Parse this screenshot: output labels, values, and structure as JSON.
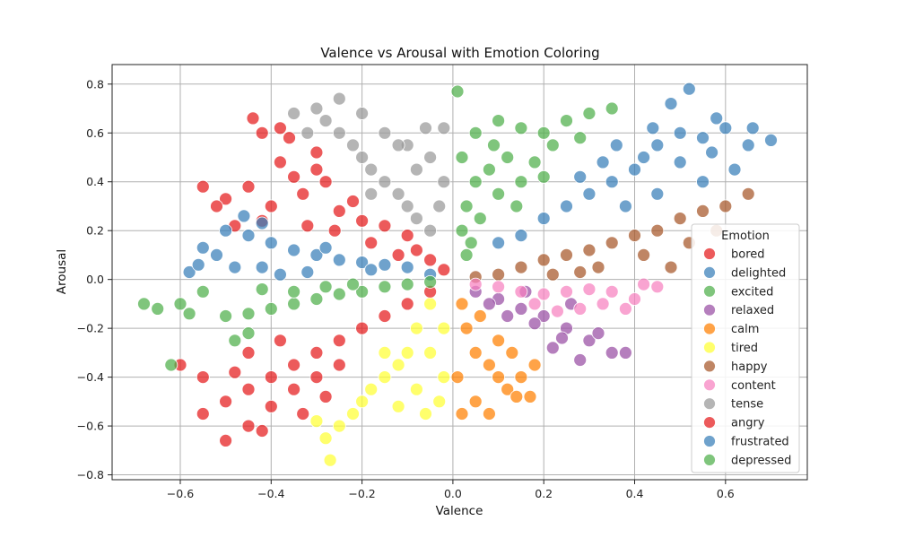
{
  "chart_data": {
    "type": "scatter",
    "title": "Valence vs Arousal with Emotion Coloring",
    "xlabel": "Valence",
    "ylabel": "Arousal",
    "xlim": [
      -0.75,
      0.78
    ],
    "ylim": [
      -0.82,
      0.88
    ],
    "xticks": [
      -0.6,
      -0.4,
      -0.2,
      0.0,
      0.2,
      0.4,
      0.6
    ],
    "yticks": [
      -0.8,
      -0.6,
      -0.4,
      -0.2,
      0.0,
      0.2,
      0.4,
      0.6,
      0.8
    ],
    "xtick_labels": [
      "−0.6",
      "−0.4",
      "−0.2",
      "0.0",
      "0.2",
      "0.4",
      "0.6"
    ],
    "ytick_labels": [
      "−0.8",
      "−0.6",
      "−0.4",
      "−0.2",
      "0.0",
      "0.2",
      "0.4",
      "0.6",
      "0.8"
    ],
    "grid": true,
    "legend": {
      "title": "Emotion",
      "placement": "right-center"
    },
    "series": [
      {
        "name": "bored",
        "color": "#e41a1c",
        "points": [
          [
            -0.38,
            0.48
          ],
          [
            -0.35,
            0.42
          ],
          [
            -0.3,
            0.45
          ],
          [
            -0.42,
            0.6
          ],
          [
            -0.45,
            0.38
          ],
          [
            -0.5,
            0.33
          ],
          [
            -0.55,
            0.38
          ],
          [
            -0.4,
            0.3
          ],
          [
            -0.33,
            0.35
          ],
          [
            -0.28,
            0.4
          ],
          [
            -0.25,
            0.28
          ],
          [
            -0.22,
            0.32
          ],
          [
            -0.2,
            0.24
          ],
          [
            -0.15,
            0.22
          ],
          [
            -0.1,
            0.18
          ],
          [
            -0.08,
            0.12
          ],
          [
            -0.05,
            0.08
          ],
          [
            -0.02,
            0.04
          ],
          [
            -0.18,
            0.15
          ],
          [
            -0.12,
            0.1
          ],
          [
            -0.44,
            0.66
          ],
          [
            -0.36,
            0.58
          ],
          [
            -0.48,
            0.22
          ],
          [
            -0.52,
            0.3
          ],
          [
            -0.42,
            0.24
          ],
          [
            -0.32,
            0.22
          ],
          [
            -0.26,
            0.2
          ],
          [
            -0.3,
            0.52
          ],
          [
            -0.38,
            0.62
          ]
        ]
      },
      {
        "name": "delighted",
        "color": "#377eb8",
        "points": [
          [
            0.45,
            0.55
          ],
          [
            0.5,
            0.6
          ],
          [
            0.55,
            0.58
          ],
          [
            0.6,
            0.62
          ],
          [
            0.65,
            0.55
          ],
          [
            0.4,
            0.45
          ],
          [
            0.35,
            0.4
          ],
          [
            0.3,
            0.35
          ],
          [
            0.25,
            0.3
          ],
          [
            0.2,
            0.25
          ],
          [
            0.15,
            0.18
          ],
          [
            0.1,
            0.15
          ],
          [
            0.48,
            0.72
          ],
          [
            0.52,
            0.78
          ],
          [
            0.58,
            0.66
          ],
          [
            0.62,
            0.45
          ],
          [
            0.55,
            0.4
          ],
          [
            0.45,
            0.35
          ],
          [
            0.38,
            0.3
          ],
          [
            0.42,
            0.5
          ],
          [
            0.33,
            0.48
          ],
          [
            0.28,
            0.42
          ],
          [
            0.5,
            0.48
          ],
          [
            0.57,
            0.52
          ],
          [
            0.66,
            0.62
          ],
          [
            0.7,
            0.57
          ],
          [
            0.44,
            0.62
          ],
          [
            0.36,
            0.55
          ]
        ]
      },
      {
        "name": "excited",
        "color": "#4daf4a",
        "points": [
          [
            0.05,
            0.6
          ],
          [
            0.1,
            0.65
          ],
          [
            0.15,
            0.62
          ],
          [
            0.2,
            0.6
          ],
          [
            0.25,
            0.65
          ],
          [
            0.3,
            0.68
          ],
          [
            0.02,
            0.5
          ],
          [
            0.05,
            0.4
          ],
          [
            0.08,
            0.45
          ],
          [
            0.12,
            0.5
          ],
          [
            0.18,
            0.48
          ],
          [
            0.22,
            0.55
          ],
          [
            0.03,
            0.3
          ],
          [
            0.06,
            0.25
          ],
          [
            0.1,
            0.35
          ],
          [
            0.15,
            0.4
          ],
          [
            0.02,
            0.2
          ],
          [
            0.04,
            0.15
          ],
          [
            0.01,
            0.77
          ],
          [
            0.35,
            0.7
          ],
          [
            0.28,
            0.58
          ],
          [
            0.09,
            0.55
          ],
          [
            0.14,
            0.3
          ],
          [
            0.2,
            0.42
          ],
          [
            0.03,
            0.1
          ]
        ]
      },
      {
        "name": "relaxed",
        "color": "#984ea3",
        "points": [
          [
            0.05,
            -0.05
          ],
          [
            0.1,
            -0.08
          ],
          [
            0.15,
            -0.12
          ],
          [
            0.2,
            -0.15
          ],
          [
            0.25,
            -0.2
          ],
          [
            0.3,
            -0.25
          ],
          [
            0.35,
            -0.3
          ],
          [
            0.22,
            -0.28
          ],
          [
            0.28,
            -0.33
          ],
          [
            0.18,
            -0.18
          ],
          [
            0.12,
            -0.15
          ],
          [
            0.08,
            -0.1
          ],
          [
            0.32,
            -0.22
          ],
          [
            0.26,
            -0.1
          ],
          [
            0.16,
            -0.05
          ],
          [
            0.38,
            -0.3
          ],
          [
            0.24,
            -0.24
          ]
        ]
      },
      {
        "name": "calm",
        "color": "#ff7f00",
        "points": [
          [
            0.02,
            -0.1
          ],
          [
            0.03,
            -0.2
          ],
          [
            0.05,
            -0.3
          ],
          [
            0.08,
            -0.35
          ],
          [
            0.1,
            -0.4
          ],
          [
            0.12,
            -0.45
          ],
          [
            0.15,
            -0.4
          ],
          [
            0.18,
            -0.35
          ],
          [
            0.05,
            -0.5
          ],
          [
            0.02,
            -0.55
          ],
          [
            0.08,
            -0.55
          ],
          [
            0.14,
            -0.48
          ],
          [
            0.17,
            -0.48
          ],
          [
            0.1,
            -0.25
          ],
          [
            0.06,
            -0.15
          ],
          [
            0.13,
            -0.3
          ],
          [
            0.01,
            -0.4
          ]
        ]
      },
      {
        "name": "tired",
        "color": "#ffff33",
        "points": [
          [
            -0.05,
            -0.1
          ],
          [
            -0.08,
            -0.2
          ],
          [
            -0.1,
            -0.3
          ],
          [
            -0.12,
            -0.35
          ],
          [
            -0.15,
            -0.4
          ],
          [
            -0.18,
            -0.45
          ],
          [
            -0.2,
            -0.5
          ],
          [
            -0.22,
            -0.55
          ],
          [
            -0.25,
            -0.6
          ],
          [
            -0.28,
            -0.65
          ],
          [
            -0.27,
            -0.74
          ],
          [
            -0.05,
            -0.3
          ],
          [
            -0.02,
            -0.4
          ],
          [
            -0.03,
            -0.5
          ],
          [
            -0.08,
            -0.45
          ],
          [
            -0.12,
            -0.52
          ],
          [
            -0.3,
            -0.58
          ],
          [
            -0.02,
            -0.2
          ],
          [
            -0.15,
            -0.3
          ],
          [
            -0.06,
            -0.55
          ]
        ]
      },
      {
        "name": "happy",
        "color": "#a65628",
        "points": [
          [
            0.1,
            0.02
          ],
          [
            0.15,
            0.05
          ],
          [
            0.2,
            0.08
          ],
          [
            0.25,
            0.1
          ],
          [
            0.3,
            0.12
          ],
          [
            0.35,
            0.15
          ],
          [
            0.4,
            0.18
          ],
          [
            0.45,
            0.2
          ],
          [
            0.5,
            0.25
          ],
          [
            0.55,
            0.28
          ],
          [
            0.6,
            0.3
          ],
          [
            0.65,
            0.35
          ],
          [
            0.05,
            0.01
          ],
          [
            0.32,
            0.05
          ],
          [
            0.42,
            0.1
          ],
          [
            0.52,
            0.15
          ],
          [
            0.48,
            0.05
          ],
          [
            0.58,
            0.2
          ],
          [
            0.22,
            0.02
          ],
          [
            0.28,
            0.03
          ]
        ]
      },
      {
        "name": "content",
        "color": "#f781bf",
        "points": [
          [
            0.05,
            -0.02
          ],
          [
            0.1,
            -0.03
          ],
          [
            0.15,
            -0.05
          ],
          [
            0.2,
            -0.06
          ],
          [
            0.25,
            -0.05
          ],
          [
            0.3,
            -0.04
          ],
          [
            0.35,
            -0.05
          ],
          [
            0.4,
            -0.08
          ],
          [
            0.45,
            -0.03
          ],
          [
            0.38,
            -0.12
          ],
          [
            0.28,
            -0.12
          ],
          [
            0.18,
            -0.1
          ],
          [
            0.42,
            -0.02
          ],
          [
            0.33,
            -0.1
          ],
          [
            0.23,
            -0.13
          ]
        ]
      },
      {
        "name": "tense",
        "color": "#999999",
        "points": [
          [
            -0.05,
            0.2
          ],
          [
            -0.08,
            0.25
          ],
          [
            -0.1,
            0.3
          ],
          [
            -0.12,
            0.35
          ],
          [
            -0.15,
            0.4
          ],
          [
            -0.18,
            0.45
          ],
          [
            -0.2,
            0.5
          ],
          [
            -0.22,
            0.55
          ],
          [
            -0.25,
            0.6
          ],
          [
            -0.28,
            0.65
          ],
          [
            -0.3,
            0.7
          ],
          [
            -0.25,
            0.74
          ],
          [
            -0.2,
            0.68
          ],
          [
            -0.15,
            0.6
          ],
          [
            -0.1,
            0.55
          ],
          [
            -0.05,
            0.5
          ],
          [
            -0.02,
            0.4
          ],
          [
            -0.03,
            0.3
          ],
          [
            -0.08,
            0.45
          ],
          [
            -0.12,
            0.55
          ],
          [
            -0.35,
            0.68
          ],
          [
            -0.32,
            0.6
          ],
          [
            -0.18,
            0.35
          ],
          [
            -0.02,
            0.62
          ],
          [
            -0.06,
            0.62
          ]
        ]
      },
      {
        "name": "angry",
        "color": "#e41a1c",
        "points": [
          [
            -0.05,
            -0.05
          ],
          [
            -0.1,
            -0.1
          ],
          [
            -0.15,
            -0.15
          ],
          [
            -0.2,
            -0.2
          ],
          [
            -0.25,
            -0.25
          ],
          [
            -0.3,
            -0.3
          ],
          [
            -0.35,
            -0.35
          ],
          [
            -0.4,
            -0.4
          ],
          [
            -0.45,
            -0.45
          ],
          [
            -0.5,
            -0.5
          ],
          [
            -0.55,
            -0.55
          ],
          [
            -0.5,
            -0.66
          ],
          [
            -0.45,
            -0.6
          ],
          [
            -0.4,
            -0.52
          ],
          [
            -0.35,
            -0.45
          ],
          [
            -0.3,
            -0.4
          ],
          [
            -0.25,
            -0.35
          ],
          [
            -0.38,
            -0.25
          ],
          [
            -0.45,
            -0.3
          ],
          [
            -0.55,
            -0.4
          ],
          [
            -0.6,
            -0.35
          ],
          [
            -0.48,
            -0.38
          ],
          [
            -0.42,
            -0.62
          ],
          [
            -0.33,
            -0.55
          ],
          [
            -0.28,
            -0.48
          ]
        ]
      },
      {
        "name": "frustrated",
        "color": "#377eb8",
        "points": [
          [
            -0.1,
            0.05
          ],
          [
            -0.15,
            0.06
          ],
          [
            -0.2,
            0.07
          ],
          [
            -0.25,
            0.08
          ],
          [
            -0.3,
            0.1
          ],
          [
            -0.35,
            0.12
          ],
          [
            -0.4,
            0.15
          ],
          [
            -0.45,
            0.18
          ],
          [
            -0.5,
            0.2
          ],
          [
            -0.55,
            0.13
          ],
          [
            -0.52,
            0.1
          ],
          [
            -0.48,
            0.05
          ],
          [
            -0.42,
            0.05
          ],
          [
            -0.38,
            0.02
          ],
          [
            -0.32,
            0.03
          ],
          [
            -0.05,
            0.02
          ],
          [
            -0.58,
            0.03
          ],
          [
            -0.56,
            0.06
          ],
          [
            -0.46,
            0.26
          ],
          [
            -0.42,
            0.23
          ],
          [
            -0.28,
            0.13
          ],
          [
            -0.18,
            0.04
          ]
        ]
      },
      {
        "name": "depressed",
        "color": "#4daf4a",
        "points": [
          [
            -0.1,
            -0.02
          ],
          [
            -0.15,
            -0.03
          ],
          [
            -0.2,
            -0.05
          ],
          [
            -0.25,
            -0.06
          ],
          [
            -0.3,
            -0.08
          ],
          [
            -0.35,
            -0.1
          ],
          [
            -0.4,
            -0.12
          ],
          [
            -0.45,
            -0.14
          ],
          [
            -0.5,
            -0.15
          ],
          [
            -0.55,
            -0.05
          ],
          [
            -0.6,
            -0.1
          ],
          [
            -0.65,
            -0.12
          ],
          [
            -0.68,
            -0.1
          ],
          [
            -0.58,
            -0.14
          ],
          [
            -0.48,
            -0.25
          ],
          [
            -0.45,
            -0.22
          ],
          [
            -0.05,
            -0.01
          ],
          [
            -0.35,
            -0.05
          ],
          [
            -0.28,
            -0.03
          ],
          [
            -0.42,
            -0.04
          ],
          [
            -0.62,
            -0.35
          ],
          [
            -0.22,
            -0.02
          ]
        ]
      }
    ]
  }
}
